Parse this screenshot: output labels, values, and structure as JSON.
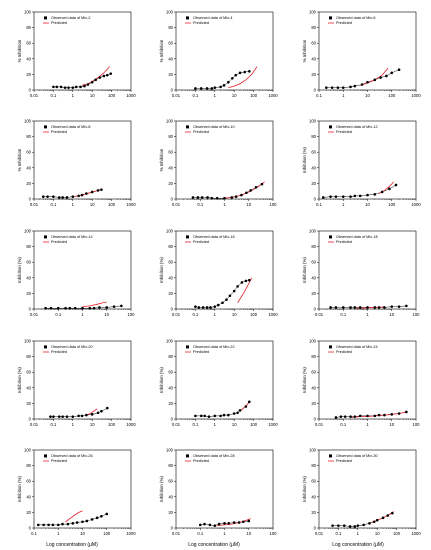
{
  "figure": {
    "xlabel_bottom": "Log concentration (μM)",
    "predicted_color": "#e8202a",
    "observed_color": "#000000"
  },
  "chart_data": [
    {
      "type": "scatter",
      "title": "",
      "legend": [
        "Observed data of Mix-2",
        "Predicted"
      ],
      "ylabel": "% Inhibition",
      "xscale": "log",
      "xlim": [
        0.01,
        1000
      ],
      "ylim": [
        0,
        100
      ],
      "xticks": [
        "0.01",
        "0.1",
        "1",
        "10",
        "100",
        "1000"
      ],
      "yticks": [
        "0",
        "20",
        "40",
        "60",
        "80",
        "100"
      ],
      "observed": {
        "x": [
          0.1,
          0.15,
          0.25,
          0.4,
          0.6,
          1,
          1.5,
          2.5,
          4,
          6,
          10,
          15,
          25,
          40,
          60,
          90
        ],
        "y": [
          4,
          4,
          4,
          3,
          3,
          3,
          4,
          4,
          5,
          7,
          10,
          13,
          16,
          18,
          19,
          21
        ]
      },
      "predicted": {
        "x": [
          3,
          6,
          10,
          20,
          40,
          80
        ],
        "y": [
          6,
          8,
          11,
          16,
          22,
          30
        ]
      }
    },
    {
      "type": "scatter",
      "title": "",
      "legend": [
        "Observed data of Mix-4",
        "Predicted"
      ],
      "ylabel": "% Inhibition",
      "xscale": "log",
      "xlim": [
        0.01,
        1000
      ],
      "ylim": [
        0,
        100
      ],
      "xticks": [
        "0.01",
        "0.1",
        "1",
        "10",
        "100",
        "1000"
      ],
      "yticks": [
        "0",
        "20",
        "40",
        "60",
        "80",
        "100"
      ],
      "observed": {
        "x": [
          0.1,
          0.2,
          0.4,
          0.7,
          1,
          2,
          3,
          5,
          8,
          12,
          20,
          35,
          60
        ],
        "y": [
          2,
          2,
          2,
          2,
          3,
          4,
          6,
          10,
          15,
          19,
          22,
          23,
          24
        ]
      },
      "predicted": {
        "x": [
          5,
          10,
          20,
          40,
          80,
          150
        ],
        "y": [
          3,
          5,
          8,
          13,
          20,
          30
        ]
      }
    },
    {
      "type": "scatter",
      "title": "",
      "legend": [
        "Observed data of Mix-6",
        "Predicted"
      ],
      "ylabel": "% Inhibition",
      "xscale": "log",
      "xlim": [
        0.1,
        1000
      ],
      "ylim": [
        0,
        100
      ],
      "xticks": [
        "0.1",
        "1",
        "10",
        "100",
        "1000"
      ],
      "yticks": [
        "0",
        "20",
        "40",
        "60",
        "80",
        "100"
      ],
      "observed": {
        "x": [
          0.2,
          0.35,
          0.6,
          1,
          2,
          3,
          6,
          10,
          20,
          35,
          60,
          100,
          200
        ],
        "y": [
          3,
          3,
          3,
          3,
          4,
          5,
          7,
          10,
          13,
          16,
          18,
          22,
          26
        ]
      },
      "predicted": {
        "x": [
          5,
          10,
          20,
          40,
          70
        ],
        "y": [
          6,
          9,
          13,
          19,
          28
        ]
      }
    },
    {
      "type": "scatter",
      "title": "",
      "legend": [
        "Observed data of Mix-8",
        "Predicted"
      ],
      "ylabel": "% Inhibition",
      "xscale": "log",
      "xlim": [
        0.01,
        1000
      ],
      "ylim": [
        0,
        100
      ],
      "xticks": [
        "0.01",
        "0.1",
        "1",
        "10",
        "100",
        "1000"
      ],
      "yticks": [
        "0",
        "20",
        "40",
        "60",
        "80",
        "100"
      ],
      "observed": {
        "x": [
          0.03,
          0.05,
          0.1,
          0.2,
          0.3,
          0.5,
          1,
          2,
          3,
          5,
          10,
          20,
          30
        ],
        "y": [
          3,
          3,
          3,
          2,
          2,
          2,
          3,
          4,
          5,
          7,
          9,
          11,
          12
        ]
      },
      "predicted": {
        "x": [
          1,
          2,
          4,
          8,
          15,
          25
        ],
        "y": [
          3,
          4,
          6,
          8,
          10,
          12
        ]
      }
    },
    {
      "type": "scatter",
      "title": "",
      "legend": [
        "Observed data of Mix-10",
        "Predicted"
      ],
      "ylabel": "% Inhibition",
      "xscale": "log",
      "xlim": [
        0.01,
        100
      ],
      "ylim": [
        0,
        100
      ],
      "xticks": [
        "0.01",
        "0.1",
        "1",
        "10",
        "100"
      ],
      "yticks": [
        "0",
        "20",
        "40",
        "60",
        "80",
        "100"
      ],
      "observed": {
        "x": [
          0.05,
          0.08,
          0.12,
          0.2,
          0.3,
          0.5,
          1,
          2,
          3,
          5,
          8,
          12,
          20,
          35
        ],
        "y": [
          2,
          2,
          2,
          2,
          1,
          1,
          1,
          2,
          3,
          5,
          8,
          11,
          15,
          19
        ]
      },
      "predicted": {
        "x": [
          1,
          3,
          6,
          12,
          25,
          45
        ],
        "y": [
          1,
          3,
          6,
          10,
          16,
          22
        ]
      }
    },
    {
      "type": "scatter",
      "title": "",
      "legend": [
        "Observed data of Mix-12",
        "Predicted"
      ],
      "ylabel": "Inhibition (%)",
      "xscale": "log",
      "xlim": [
        0.1,
        1000
      ],
      "ylim": [
        0,
        100
      ],
      "xticks": [
        "0.1",
        "1",
        "10",
        "100",
        "1000"
      ],
      "yticks": [
        "0",
        "20",
        "40",
        "60",
        "80",
        "100"
      ],
      "observed": {
        "x": [
          0.15,
          0.3,
          0.5,
          1,
          2,
          3,
          5,
          10,
          20,
          40,
          80,
          150
        ],
        "y": [
          2,
          3,
          3,
          3,
          3,
          4,
          4,
          5,
          6,
          9,
          13,
          18
        ]
      },
      "predicted": {
        "x": [
          30,
          50,
          80,
          120
        ],
        "y": [
          7,
          11,
          16,
          22
        ]
      }
    },
    {
      "type": "scatter",
      "title": "",
      "legend": [
        "Observed data of Mix-14",
        "Predicted"
      ],
      "ylabel": "Inhibition (%)",
      "xscale": "log",
      "xlim": [
        0.01,
        100
      ],
      "ylim": [
        0,
        100
      ],
      "xticks": [
        "0.01",
        "0.1",
        "1",
        "10",
        "100"
      ],
      "yticks": [
        "0",
        "20",
        "40",
        "60",
        "80",
        "100"
      ],
      "observed": {
        "x": [
          0.03,
          0.05,
          0.1,
          0.2,
          0.3,
          0.5,
          1,
          2,
          3,
          5,
          10,
          20,
          40
        ],
        "y": [
          1,
          1,
          1,
          1,
          1,
          1,
          1,
          1,
          1,
          2,
          2,
          3,
          4
        ]
      },
      "predicted": {
        "x": [
          1,
          2,
          4,
          7,
          10
        ],
        "y": [
          3,
          4,
          6,
          8,
          9
        ]
      }
    },
    {
      "type": "scatter",
      "title": "",
      "legend": [
        "Observed data of Mix-16",
        "Predicted"
      ],
      "ylabel": "Inhibition (%)",
      "xscale": "log",
      "xlim": [
        0.01,
        1000
      ],
      "ylim": [
        0,
        100
      ],
      "xticks": [
        "0.01",
        "0.1",
        "1",
        "10",
        "100",
        "1000"
      ],
      "yticks": [
        "0",
        "20",
        "40",
        "60",
        "80",
        "100"
      ],
      "observed": {
        "x": [
          0.1,
          0.15,
          0.25,
          0.4,
          0.6,
          1,
          1.5,
          2.5,
          4,
          6,
          10,
          15,
          25,
          40,
          60
        ],
        "y": [
          3,
          2,
          2,
          2,
          2,
          3,
          5,
          8,
          12,
          17,
          23,
          29,
          34,
          36,
          37
        ]
      },
      "predicted": {
        "x": [
          15,
          20,
          30,
          50,
          80
        ],
        "y": [
          8,
          13,
          20,
          30,
          40
        ]
      }
    },
    {
      "type": "scatter",
      "title": "",
      "legend": [
        "Observed data of Mix-18",
        "Predicted"
      ],
      "ylabel": "Inhibition (%)",
      "xscale": "log",
      "xlim": [
        0.01,
        100
      ],
      "ylim": [
        0,
        100
      ],
      "xticks": [
        "0.01",
        "0.1",
        "1",
        "10",
        "100"
      ],
      "yticks": [
        "0",
        "20",
        "40",
        "60",
        "80",
        "100"
      ],
      "observed": {
        "x": [
          0.03,
          0.05,
          0.1,
          0.2,
          0.3,
          0.5,
          1,
          2,
          3,
          5,
          10,
          20,
          40
        ],
        "y": [
          2,
          2,
          2,
          2,
          2,
          2,
          2,
          2,
          2,
          2,
          3,
          3,
          4
        ]
      },
      "predicted": {
        "x": [
          0.3,
          0.6,
          1,
          2,
          3,
          5
        ],
        "y": [
          1,
          1,
          2,
          2,
          2,
          3
        ]
      }
    },
    {
      "type": "scatter",
      "title": "",
      "legend": [
        "Observed data of Mix-20",
        "Predicted"
      ],
      "ylabel": "Inhibition (%)",
      "xscale": "log",
      "xlim": [
        0.01,
        1000
      ],
      "ylim": [
        0,
        100
      ],
      "xticks": [
        "0.01",
        "0.1",
        "1",
        "10",
        "100",
        "1000"
      ],
      "yticks": [
        "0",
        "20",
        "40",
        "60",
        "80",
        "100"
      ],
      "observed": {
        "x": [
          0.07,
          0.1,
          0.2,
          0.3,
          0.5,
          1,
          2,
          3,
          5,
          10,
          20,
          30,
          60
        ],
        "y": [
          3,
          3,
          3,
          3,
          3,
          3,
          4,
          4,
          5,
          6,
          8,
          10,
          14
        ]
      },
      "predicted": {
        "x": [
          5,
          8,
          12,
          18
        ],
        "y": [
          5,
          7,
          10,
          13
        ]
      }
    },
    {
      "type": "scatter",
      "title": "",
      "legend": [
        "Observed data of Mix-22",
        "Predicted"
      ],
      "ylabel": "Inhibition (%)",
      "xscale": "log",
      "xlim": [
        0.01,
        1000
      ],
      "ylim": [
        0,
        100
      ],
      "xticks": [
        "0.01",
        "0.1",
        "1",
        "10",
        "100",
        "1000"
      ],
      "yticks": [
        "0",
        "20",
        "40",
        "60",
        "80",
        "100"
      ],
      "observed": {
        "x": [
          0.1,
          0.2,
          0.3,
          0.5,
          1,
          2,
          3,
          5,
          10,
          15,
          20,
          40,
          60
        ],
        "y": [
          4,
          4,
          4,
          3,
          4,
          4,
          5,
          5,
          7,
          8,
          11,
          16,
          22
        ]
      },
      "predicted": {
        "x": [
          20,
          30,
          45,
          60
        ],
        "y": [
          10,
          14,
          18,
          22
        ]
      }
    },
    {
      "type": "scatter",
      "title": "",
      "legend": [
        "Observed data of Mix-24",
        "Predicted"
      ],
      "ylabel": "Inhibition (%)",
      "xscale": "log",
      "xlim": [
        0.01,
        100
      ],
      "ylim": [
        0,
        100
      ],
      "xticks": [
        "0.01",
        "0.1",
        "1",
        "10",
        "100"
      ],
      "yticks": [
        "0",
        "20",
        "40",
        "60",
        "80",
        "100"
      ],
      "observed": {
        "x": [
          0.05,
          0.08,
          0.12,
          0.2,
          0.3,
          0.5,
          1,
          2,
          3,
          5,
          10,
          20,
          40
        ],
        "y": [
          2,
          3,
          3,
          3,
          3,
          4,
          4,
          4,
          5,
          5,
          6,
          7,
          9
        ]
      },
      "predicted": {
        "x": [
          0.2,
          0.5,
          1,
          2,
          5,
          10,
          20,
          40
        ],
        "y": [
          2,
          3,
          3,
          4,
          5,
          6,
          7,
          9
        ]
      }
    },
    {
      "type": "scatter",
      "title": "",
      "legend": [
        "Observed data of Mix-26",
        "Predicted"
      ],
      "ylabel": "Inhibition (%)",
      "xscale": "log",
      "xlim": [
        0.1,
        1000
      ],
      "ylim": [
        0,
        100
      ],
      "xticks": [
        "0.1",
        "1",
        "10",
        "100",
        "1000"
      ],
      "yticks": [
        "0",
        "20",
        "40",
        "60",
        "80",
        "100"
      ],
      "observed": {
        "x": [
          0.15,
          0.25,
          0.4,
          0.6,
          1,
          1.5,
          2.5,
          4,
          6,
          10,
          15,
          25,
          40,
          60,
          100
        ],
        "y": [
          4,
          4,
          4,
          4,
          4,
          5,
          5,
          6,
          7,
          8,
          9,
          11,
          13,
          15,
          18
        ]
      },
      "predicted": {
        "x": [
          2,
          3,
          5,
          7,
          10
        ],
        "y": [
          8,
          12,
          17,
          20,
          22
        ]
      }
    },
    {
      "type": "scatter",
      "title": "",
      "legend": [
        "Observed data of Mix-28",
        "Predicted"
      ],
      "ylabel": "Inhibition (%)",
      "xscale": "log",
      "xlim": [
        0.01,
        100
      ],
      "ylim": [
        0,
        100
      ],
      "xticks": [
        "0.01",
        "0.1",
        "1",
        "10",
        "100"
      ],
      "yticks": [
        "0",
        "20",
        "40",
        "60",
        "80",
        "100"
      ],
      "observed": {
        "x": [
          0.1,
          0.15,
          0.25,
          0.4,
          0.6,
          1,
          1.5,
          2.5,
          4,
          6,
          10
        ],
        "y": [
          4,
          5,
          4,
          3,
          5,
          6,
          6,
          7,
          7,
          8,
          9
        ]
      },
      "predicted": {
        "x": [
          0.5,
          1,
          2,
          4,
          8,
          12
        ],
        "y": [
          3,
          4,
          5,
          7,
          10,
          12
        ]
      }
    },
    {
      "type": "scatter",
      "title": "",
      "legend": [
        "Observed data of Mix-30",
        "Predicted"
      ],
      "ylabel": "Inhibition (%)",
      "xscale": "log",
      "xlim": [
        0.01,
        1000
      ],
      "ylim": [
        0,
        100
      ],
      "xticks": [
        "0.01",
        "0.1",
        "1",
        "10",
        "100",
        "1000"
      ],
      "yticks": [
        "0",
        "20",
        "40",
        "60",
        "80",
        "100"
      ],
      "observed": {
        "x": [
          0.05,
          0.1,
          0.2,
          0.4,
          0.7,
          1,
          2,
          4,
          7,
          10,
          20,
          35,
          60
        ],
        "y": [
          3,
          3,
          3,
          2,
          2,
          3,
          4,
          6,
          8,
          10,
          13,
          16,
          19
        ]
      },
      "predicted": {
        "x": [
          5,
          10,
          20,
          40,
          70
        ],
        "y": [
          7,
          10,
          13,
          17,
          21
        ]
      }
    }
  ]
}
